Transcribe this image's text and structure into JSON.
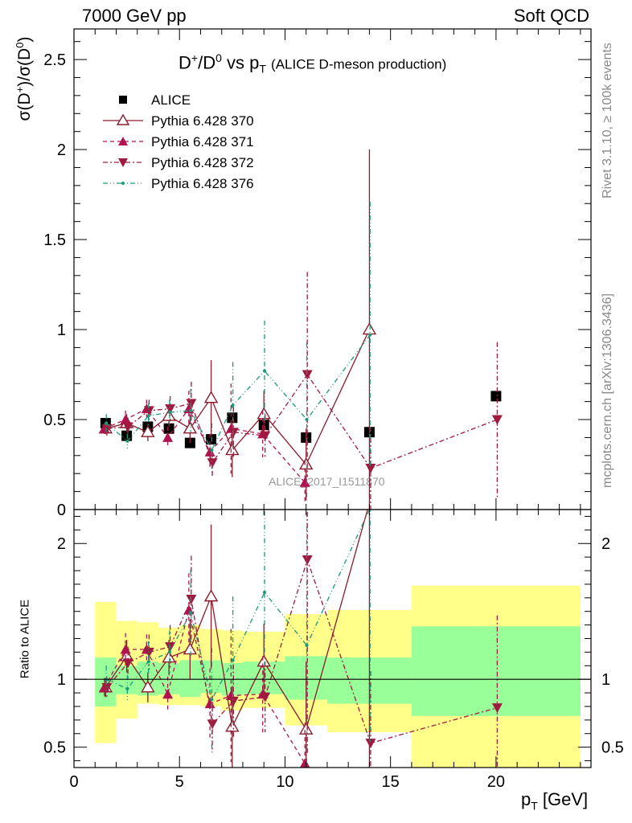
{
  "header": {
    "left": "7000 GeV pp",
    "right": "Soft QCD"
  },
  "side_labels": {
    "rivet": "Rivet 3.1.10, ≥ 100k events",
    "mcplots": "mcplots.cern.ch [arXiv:1306.3436]"
  },
  "watermark": "ALICE_2017_I1511870",
  "plot_title": {
    "main_pre": "D",
    "main_sup1": "+",
    "main_mid": "/D",
    "main_sup2": "0",
    "main_post": " vs p",
    "main_sub": "T",
    "note": "(ALICE D-meson production)"
  },
  "colors": {
    "data": "#000000",
    "p370": "#8b1a2b",
    "p371": "#b0134f",
    "p372": "#a01a3f",
    "p376": "#1a9a7a",
    "band_inner": "#99ff99",
    "band_outer": "#ffff8a"
  },
  "chart_data": [
    {
      "type": "scatter",
      "panel": "main",
      "ylabel": "σ(D+)/σ(D0)",
      "xlim": [
        0,
        24.5
      ],
      "ylim": [
        0,
        2.67
      ],
      "yticks": [
        "0",
        "0.5",
        "1",
        "1.5",
        "2",
        "2.5"
      ],
      "legend": [
        "ALICE",
        "Pythia 6.428 370",
        "Pythia 6.428 371",
        "Pythia 6.428 372",
        "Pythia 6.428 376"
      ],
      "legend_position": "top-left",
      "x": [
        1.5,
        2.5,
        3.5,
        4.5,
        5.5,
        6.5,
        7.5,
        9.0,
        11.0,
        14.0,
        20.0
      ],
      "series": [
        {
          "name": "ALICE",
          "y": [
            0.48,
            0.41,
            0.46,
            0.45,
            0.37,
            0.39,
            0.51,
            0.47,
            0.4,
            0.43,
            0.63
          ],
          "err": [
            0.02,
            0.02,
            0.02,
            0.02,
            0.02,
            0.02,
            0.02,
            0.03,
            0.02,
            0.02,
            0.02
          ]
        },
        {
          "name": "Pythia 6.428 370",
          "y": [
            0.45,
            0.48,
            0.43,
            0.52,
            0.45,
            0.62,
            0.33,
            0.53,
            0.25,
            1.0,
            null
          ],
          "err": [
            0.03,
            0.05,
            0.05,
            0.06,
            0.08,
            0.21,
            0.15,
            0.13,
            0.2,
            1.0,
            null
          ]
        },
        {
          "name": "Pythia 6.428 371",
          "y": [
            0.45,
            0.5,
            0.56,
            0.4,
            0.56,
            0.32,
            0.45,
            0.42,
            0.15,
            null,
            null
          ],
          "err": [
            0.03,
            0.05,
            0.05,
            0.06,
            0.1,
            0.1,
            0.25,
            0.13,
            0.12,
            null,
            null
          ]
        },
        {
          "name": "Pythia 6.428 372",
          "y": [
            0.45,
            0.46,
            0.55,
            0.56,
            0.59,
            0.26,
            0.43,
            0.41,
            0.75,
            0.23,
            0.5
          ],
          "err": [
            0.04,
            0.05,
            0.06,
            0.07,
            0.12,
            0.08,
            0.14,
            0.12,
            0.57,
            0.23,
            0.43
          ]
        },
        {
          "name": "Pythia 6.428 376",
          "y": [
            0.48,
            0.38,
            0.52,
            0.54,
            0.55,
            0.33,
            0.58,
            0.77,
            0.5,
            0.97,
            null
          ],
          "err": [
            0.05,
            0.04,
            0.07,
            0.07,
            0.12,
            0.15,
            0.24,
            0.28,
            0.43,
            0.74,
            null
          ]
        }
      ]
    },
    {
      "type": "scatter",
      "panel": "ratio",
      "ylabel": "Ratio to ALICE",
      "xlabel": "p_T [GeV]",
      "xlim": [
        0,
        24.5
      ],
      "ylim": [
        0.35,
        2.25
      ],
      "yticks": [
        "0.5",
        "1",
        "2"
      ],
      "xticks": [
        "0",
        "5",
        "10",
        "15",
        "20"
      ],
      "reference_line": 1,
      "x": [
        1.5,
        2.5,
        3.5,
        4.5,
        5.5,
        6.5,
        7.5,
        9.0,
        11.0,
        14.0,
        20.0
      ],
      "bands": {
        "edges": [
          1,
          2,
          3,
          4,
          5,
          6,
          7,
          8,
          10,
          12,
          16,
          24
        ],
        "inner_lo": [
          0.8,
          0.89,
          0.88,
          0.89,
          0.87,
          0.9,
          0.88,
          0.89,
          0.85,
          0.82,
          0.73
        ],
        "inner_hi": [
          1.16,
          1.1,
          1.13,
          1.12,
          1.14,
          1.14,
          1.12,
          1.13,
          1.17,
          1.16,
          1.39
        ],
        "outer_lo": [
          0.53,
          0.71,
          0.82,
          0.81,
          0.81,
          0.8,
          0.77,
          0.79,
          0.66,
          0.61,
          0.35
        ],
        "outer_hi": [
          1.57,
          1.43,
          1.42,
          1.38,
          1.4,
          1.37,
          1.36,
          1.35,
          1.48,
          1.51,
          1.69
        ]
      },
      "series": [
        {
          "name": "Pythia 6.428 370",
          "y": [
            0.94,
            1.17,
            0.94,
            1.16,
            1.22,
            1.61,
            0.65,
            1.13,
            0.63,
            2.3,
            null
          ],
          "err": [
            0.07,
            0.12,
            0.11,
            0.13,
            0.22,
            0.53,
            0.3,
            0.28,
            0.5,
            2.3,
            null
          ]
        },
        {
          "name": "Pythia 6.428 371",
          "y": [
            0.94,
            1.22,
            1.22,
            0.89,
            1.51,
            0.82,
            0.88,
            0.89,
            0.38,
            null,
            null
          ],
          "err": [
            0.07,
            0.12,
            0.11,
            0.13,
            0.27,
            0.26,
            0.49,
            0.28,
            0.3,
            null,
            null
          ]
        },
        {
          "name": "Pythia 6.428 372",
          "y": [
            0.94,
            1.12,
            1.2,
            1.24,
            1.59,
            0.67,
            0.84,
            0.87,
            1.88,
            0.53,
            0.79
          ],
          "err": [
            0.08,
            0.12,
            0.13,
            0.16,
            0.32,
            0.21,
            0.27,
            0.26,
            1.43,
            0.53,
            0.68
          ]
        },
        {
          "name": "Pythia 6.428 376",
          "y": [
            1.0,
            0.93,
            1.13,
            1.2,
            1.49,
            0.85,
            1.14,
            1.64,
            1.25,
            2.26,
            null
          ],
          "err": [
            0.1,
            0.1,
            0.15,
            0.16,
            0.32,
            0.38,
            0.47,
            0.6,
            1.08,
            1.72,
            null
          ]
        }
      ]
    }
  ]
}
